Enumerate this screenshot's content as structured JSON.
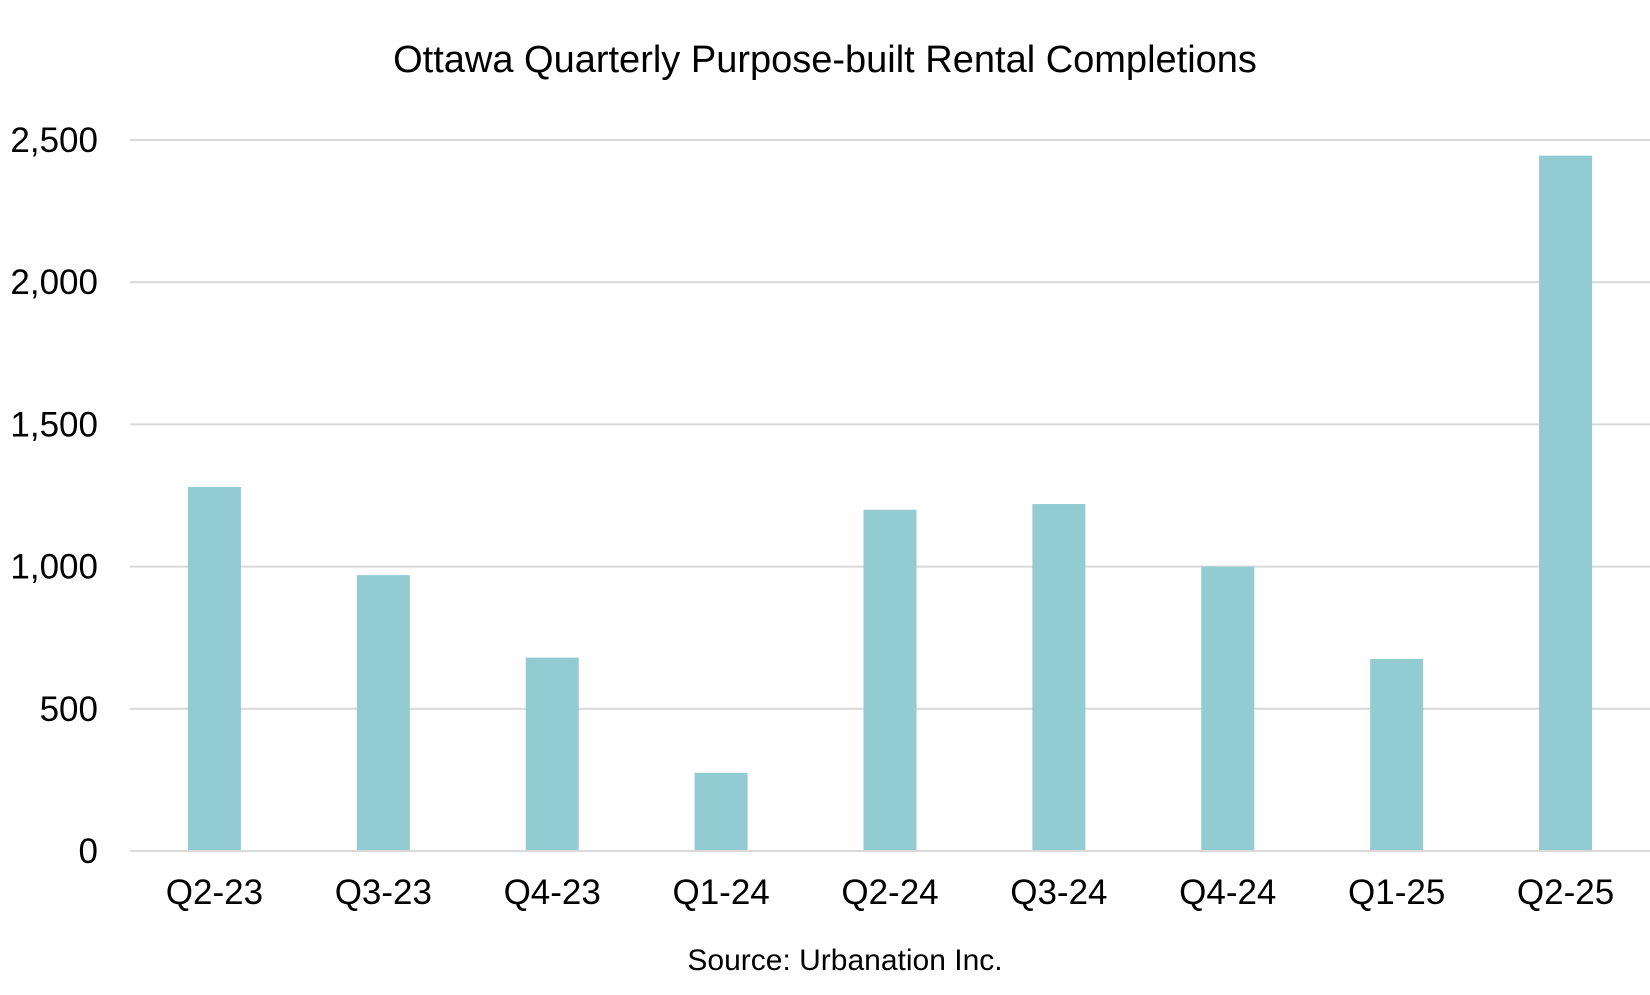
{
  "chart_data": {
    "type": "bar",
    "title": "Ottawa Quarterly Purpose-built Rental Completions",
    "xlabel": "",
    "ylabel": "",
    "categories": [
      "Q2-23",
      "Q3-23",
      "Q4-23",
      "Q1-24",
      "Q2-24",
      "Q3-24",
      "Q4-24",
      "Q1-25",
      "Q2-25"
    ],
    "values": [
      1280,
      970,
      680,
      275,
      1200,
      1220,
      1000,
      675,
      2445
    ],
    "ylim": [
      0,
      2500
    ],
    "yticks": [
      {
        "value": 0,
        "label": "0"
      },
      {
        "value": 500,
        "label": "500"
      },
      {
        "value": 1000,
        "label": "1,000"
      },
      {
        "value": 1500,
        "label": "1,500"
      },
      {
        "value": 2000,
        "label": "2,000"
      },
      {
        "value": 2500,
        "label": "2,500"
      }
    ],
    "grid": true,
    "legend": "none",
    "source": "Source: Urbanation Inc.",
    "colors": {
      "bar": "#93cbd2",
      "grid": "#d9d9d9",
      "axis": "#d9d9d9"
    }
  }
}
